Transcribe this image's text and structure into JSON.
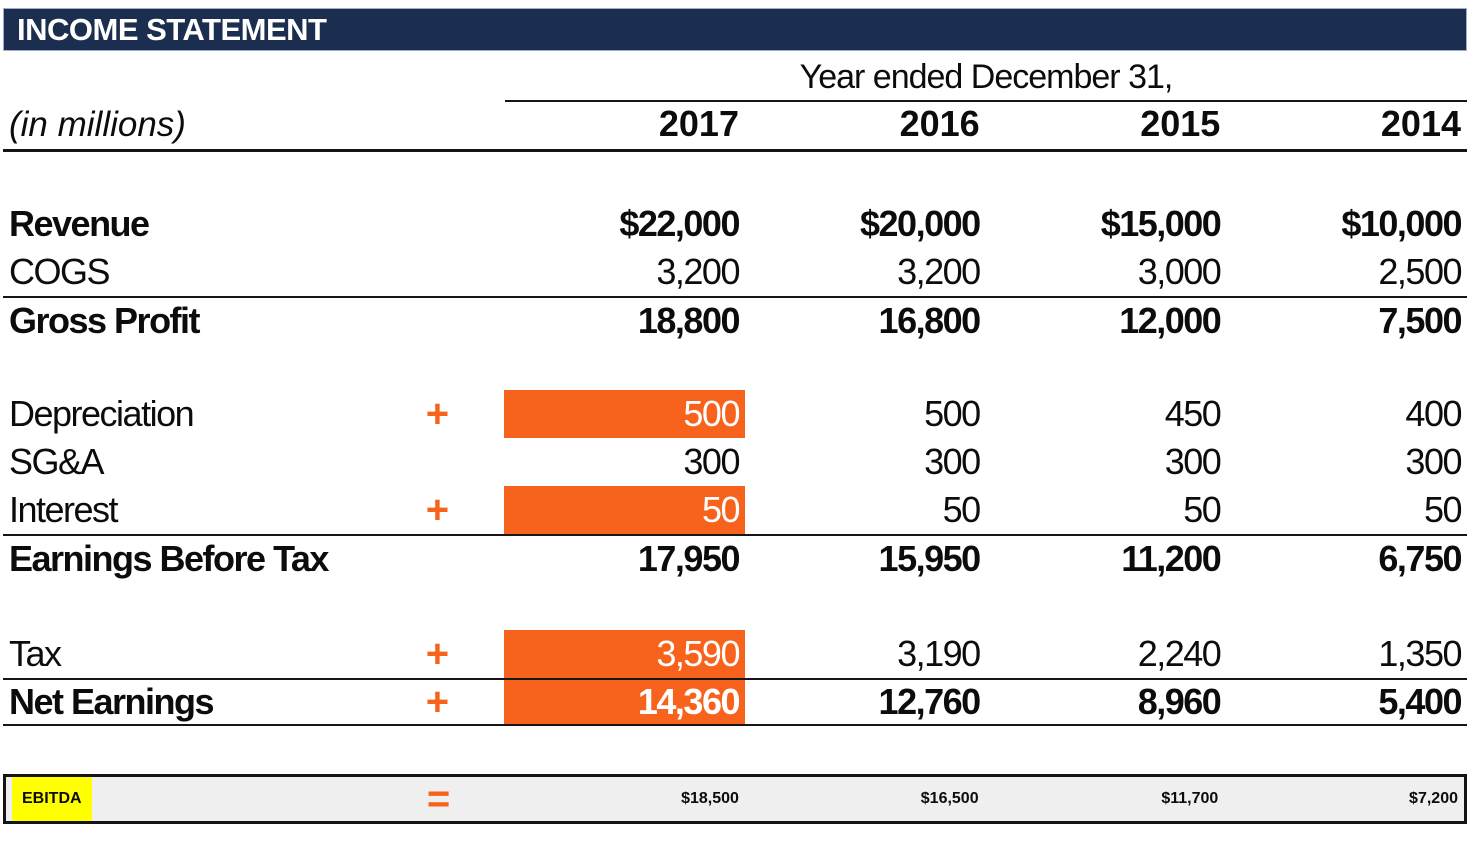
{
  "title": "INCOME STATEMENT",
  "unit_note": "(in millions)",
  "period_header": "Year ended December 31,",
  "years": [
    "2017",
    "2016",
    "2015",
    "2014"
  ],
  "colors": {
    "navy_header": "#1c2e4f",
    "input_orange": "#f7631c",
    "highlight_yellow": "#ffff00",
    "summary_row_gray": "#efefef",
    "line_black": "#161616"
  },
  "rows": [
    {
      "id": "revenue",
      "label": "Revenue",
      "op": "",
      "values": [
        "$22,000",
        "$20,000",
        "$15,000",
        "$10,000"
      ]
    },
    {
      "id": "cogs",
      "label": "COGS",
      "op": "",
      "values": [
        "3,200",
        "3,200",
        "3,000",
        "2,500"
      ]
    },
    {
      "id": "gross-profit",
      "label": "Gross Profit",
      "op": "",
      "values": [
        "18,800",
        "16,800",
        "12,000",
        "7,500"
      ]
    },
    {
      "id": "depreciation",
      "label": "Depreciation",
      "op": "+",
      "values": [
        "500",
        "500",
        "450",
        "400"
      ]
    },
    {
      "id": "sga",
      "label": "SG&A",
      "op": "",
      "values": [
        "300",
        "300",
        "300",
        "300"
      ]
    },
    {
      "id": "interest",
      "label": "Interest",
      "op": "+",
      "values": [
        "50",
        "50",
        "50",
        "50"
      ]
    },
    {
      "id": "ebt",
      "label": "Earnings Before Tax",
      "op": "",
      "values": [
        "17,950",
        "15,950",
        "11,200",
        "6,750"
      ]
    },
    {
      "id": "tax",
      "label": "Tax",
      "op": "+",
      "values": [
        "3,590",
        "3,190",
        "2,240",
        "1,350"
      ]
    },
    {
      "id": "net-earnings",
      "label": "Net Earnings",
      "op": "+",
      "values": [
        "14,360",
        "12,760",
        "8,960",
        "5,400"
      ]
    },
    {
      "id": "ebitda",
      "label": "EBITDA",
      "op": "=",
      "values": [
        "$18,500",
        "$16,500",
        "$11,700",
        "$7,200"
      ]
    }
  ]
}
